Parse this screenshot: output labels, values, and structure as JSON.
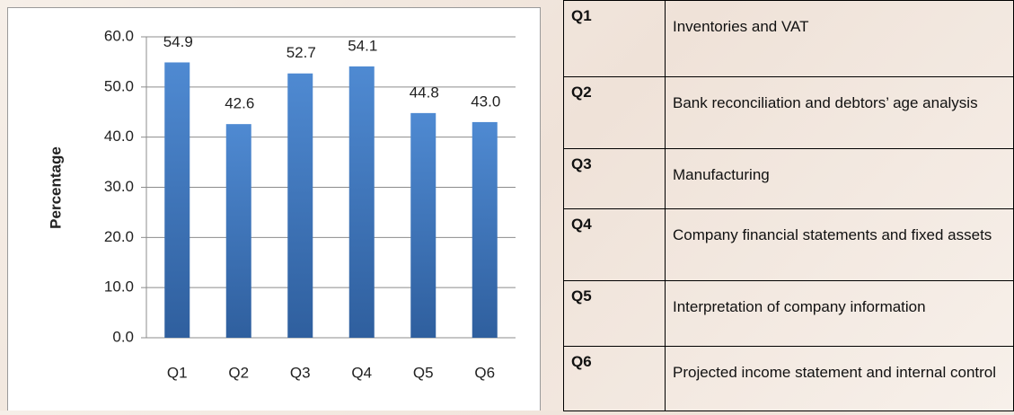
{
  "chart_data": {
    "type": "bar",
    "ylabel": "Percentage",
    "categories": [
      "Q1",
      "Q2",
      "Q3",
      "Q4",
      "Q5",
      "Q6"
    ],
    "values": [
      54.9,
      42.6,
      52.7,
      54.1,
      44.8,
      43.0
    ],
    "value_labels": [
      "54.9",
      "42.6",
      "52.7",
      "54.1",
      "44.8",
      "43.0"
    ],
    "color": "#3f77bd",
    "ylim": [
      0,
      60
    ],
    "yticks": [
      {
        "value": 0,
        "label": "0.0"
      },
      {
        "value": 10,
        "label": "10.0"
      },
      {
        "value": 20,
        "label": "20.0"
      },
      {
        "value": 30,
        "label": "30.0"
      },
      {
        "value": 40,
        "label": "40.0"
      },
      {
        "value": 50,
        "label": "50.0"
      },
      {
        "value": 60,
        "label": "60.0"
      }
    ],
    "grid": true
  },
  "table": {
    "rows": [
      [
        "Q1",
        "Inventories and VAT"
      ],
      [
        "Q2",
        "Bank reconciliation and debtors’ age analysis"
      ],
      [
        "Q3",
        "Manufacturing"
      ],
      [
        "Q4",
        "Company financial statements and fixed assets"
      ],
      [
        "Q5",
        "Interpretation of company information"
      ],
      [
        "Q6",
        "Projected income statement and internal control"
      ]
    ]
  }
}
